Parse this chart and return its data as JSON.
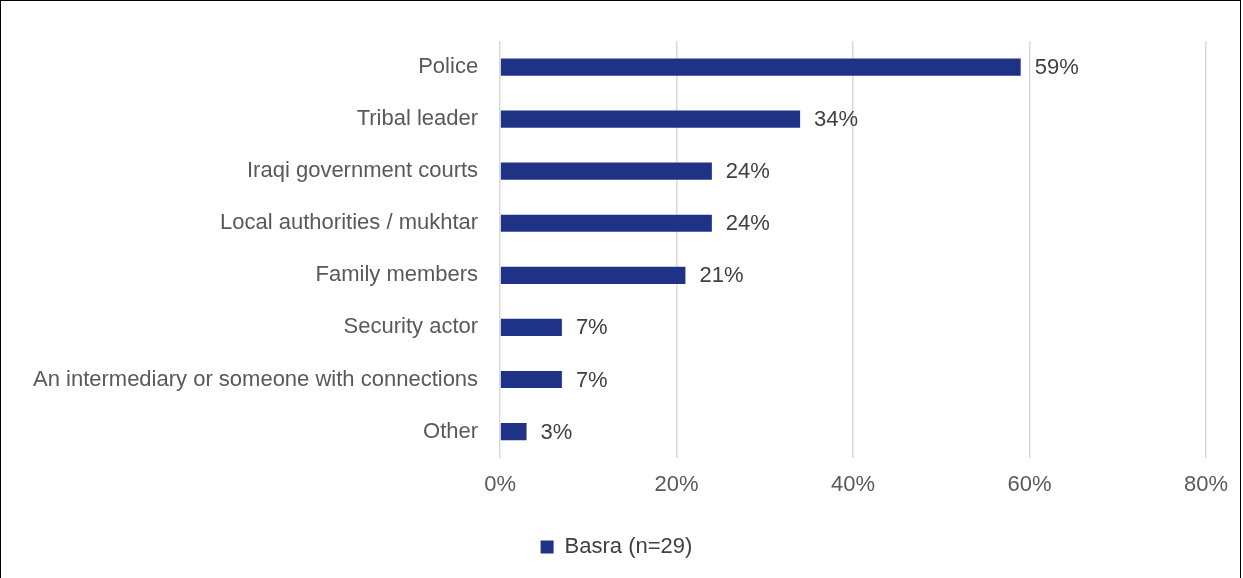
{
  "chart_data": {
    "type": "bar",
    "orientation": "horizontal",
    "categories": [
      "Police",
      "Tribal leader",
      "Iraqi government courts",
      "Local authorities / mukhtar",
      "Family members",
      "Security actor",
      "An intermediary or someone with connections",
      "Other"
    ],
    "series": [
      {
        "name": "Basra (n=29)",
        "color": "#1f3386",
        "values": [
          59,
          34,
          24,
          24,
          21,
          7,
          7,
          3
        ],
        "value_labels": [
          "59%",
          "34%",
          "24%",
          "24%",
          "21%",
          "7%",
          "7%",
          "3%"
        ]
      }
    ],
    "xlim": [
      0,
      80
    ],
    "xticks": [
      {
        "value": 0,
        "label": "0%"
      },
      {
        "value": 20,
        "label": "20%"
      },
      {
        "value": 40,
        "label": "40%"
      },
      {
        "value": 60,
        "label": "60%"
      },
      {
        "value": 80,
        "label": "80%"
      }
    ],
    "grid": "x",
    "legend": "bottom"
  }
}
